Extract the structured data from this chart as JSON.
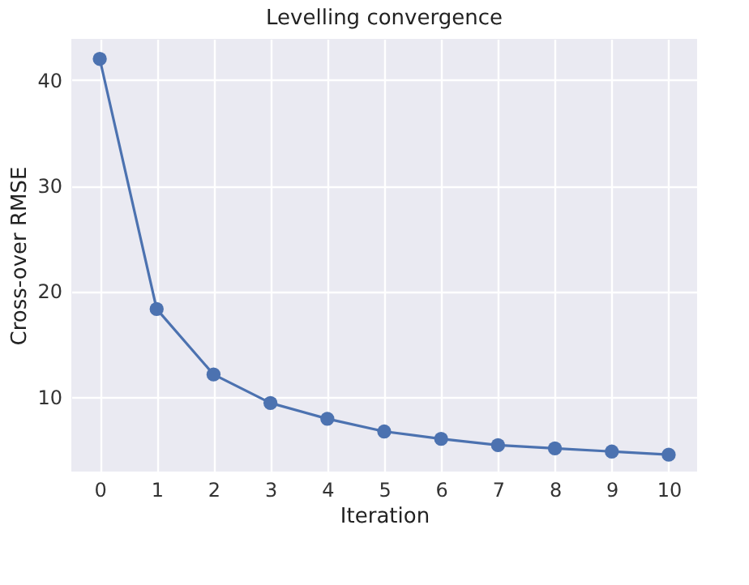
{
  "chart_data": {
    "type": "line",
    "title": "Levelling convergence",
    "xlabel": "Iteration",
    "ylabel": "Cross-over RMSE",
    "x": [
      0,
      1,
      2,
      3,
      4,
      5,
      6,
      7,
      8,
      9,
      10
    ],
    "series": [
      {
        "color": "#4c72b0",
        "values": [
          42.0,
          18.3,
          12.1,
          9.4,
          7.9,
          6.7,
          6.0,
          5.4,
          5.1,
          4.8,
          4.5
        ]
      }
    ],
    "xlim": [
      -0.5,
      10.5
    ],
    "xticks": [
      0,
      1,
      2,
      3,
      4,
      5,
      6,
      7,
      8,
      9,
      10
    ],
    "ylim": [
      2.9,
      43.9
    ],
    "yticks": [
      10,
      20,
      30,
      40
    ],
    "grid": true,
    "marker": "circle",
    "line_style": "solid"
  }
}
